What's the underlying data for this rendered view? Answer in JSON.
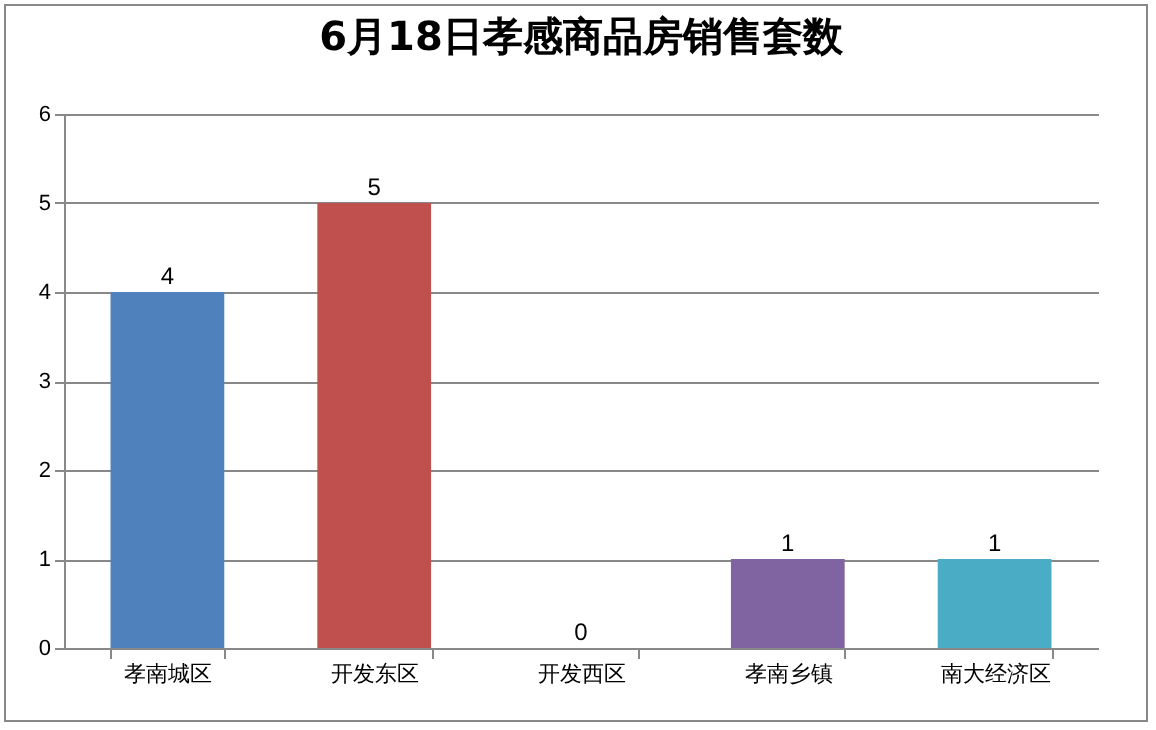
{
  "chart_data": {
    "type": "bar",
    "title": "6月18日孝感商品房销售套数",
    "categories": [
      "孝南城区",
      "开发东区",
      "开发西区",
      "孝南乡镇",
      "南大经济区"
    ],
    "values": [
      4,
      5,
      0,
      1,
      1
    ],
    "colors": [
      "#4f81bd",
      "#c0504d",
      "#9bbb59",
      "#8064a2",
      "#4bacc6"
    ],
    "ylim": [
      0,
      6
    ],
    "yticks": [
      0,
      1,
      2,
      3,
      4,
      5,
      6
    ],
    "grid": "y",
    "data_labels": true
  }
}
